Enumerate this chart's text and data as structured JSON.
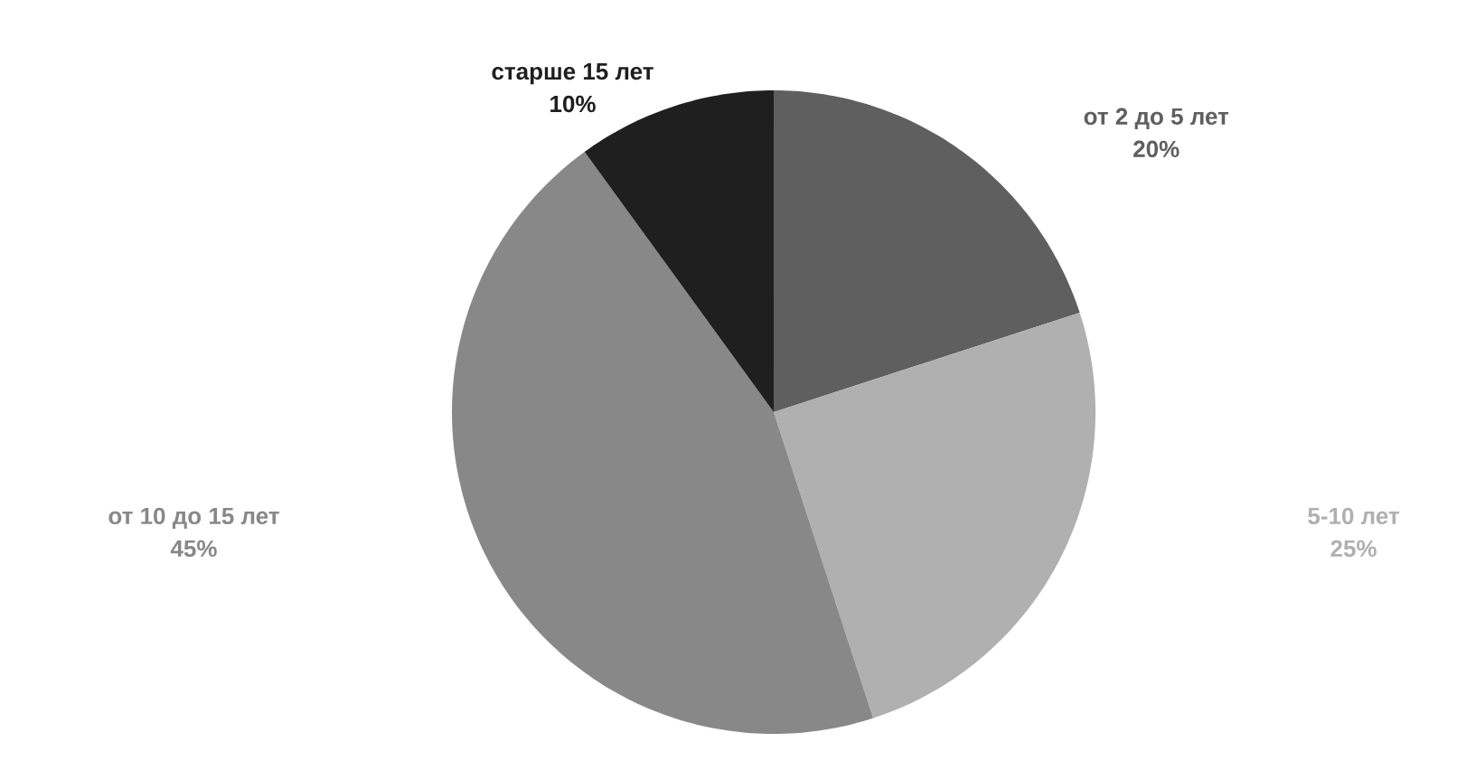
{
  "chart_data": {
    "type": "pie",
    "categories": [
      "от 2 до 5 лет",
      "5-10 лет",
      "от 10 до 15 лет",
      "старше 15 лет"
    ],
    "values": [
      20,
      25,
      45,
      10
    ],
    "colors": [
      "#5f5f5f",
      "#b0b0b0",
      "#888888",
      "#1f1f1f"
    ],
    "value_labels": [
      "20%",
      "25%",
      "45%",
      "10%"
    ]
  }
}
